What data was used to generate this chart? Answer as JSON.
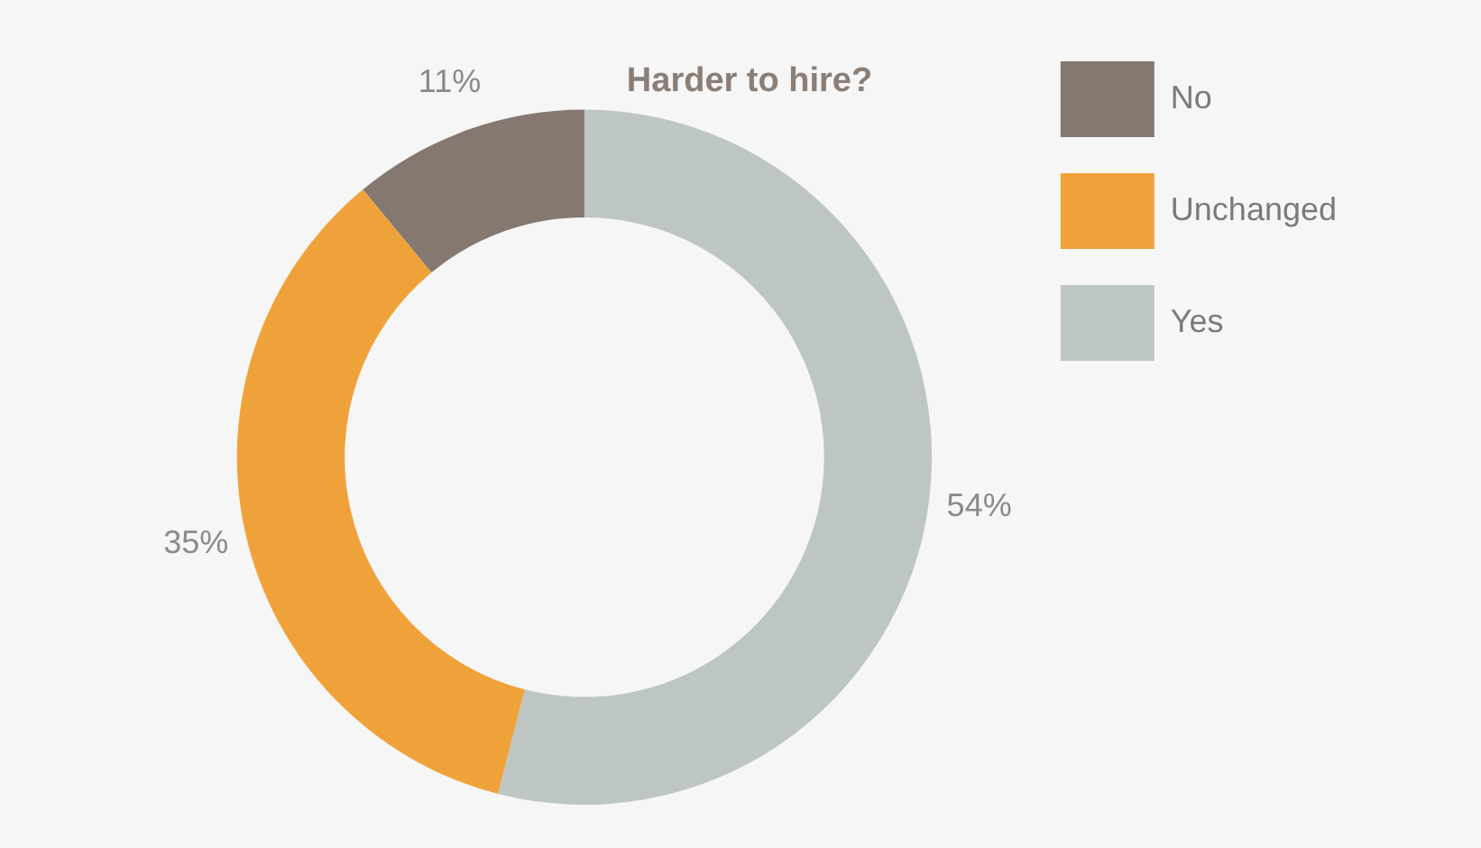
{
  "chart_data": {
    "type": "donut",
    "title": "Harder to hire?",
    "categories": [
      "No",
      "Unchanged",
      "Yes"
    ],
    "values": [
      11,
      35,
      54
    ],
    "colors": [
      "#857870",
      "#f0a23a",
      "#bec6c3"
    ],
    "value_labels": [
      "11%",
      "35%",
      "54%"
    ],
    "legend": "top right"
  }
}
